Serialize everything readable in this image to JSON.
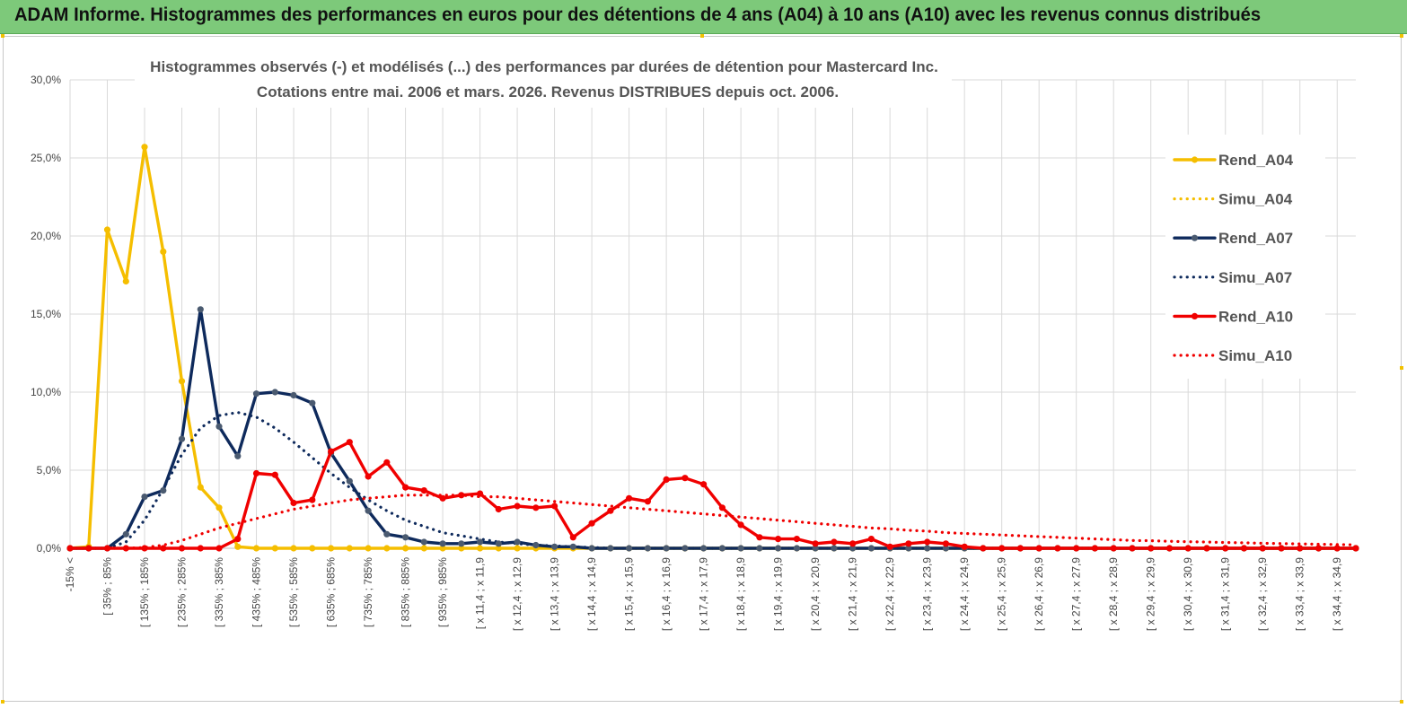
{
  "header": {
    "title": "ADAM Informe. Histogrammes des performances en euros pour des détentions de 4 ans (A04) à 10 ans (A10) avec les revenus connus distribués"
  },
  "colors": {
    "banner": "#7dc97a",
    "A04": "#f5be00",
    "A07": "#0e2a5c",
    "A10": "#f00000",
    "marker_A07": "#4a5a70",
    "grid": "#d9d9d9"
  },
  "chart_data": {
    "type": "line",
    "title": [
      "Histogrammes observés (-) et modélisés (...) des performances par durées de détention pour Mastercard Inc.",
      "Cotations entre mai. 2006 et mars. 2026. Revenus DISTRIBUES depuis oct. 2006."
    ],
    "xlabel": "",
    "ylabel": "",
    "ylim": [
      0,
      30
    ],
    "y_ticks": [
      "0,0%",
      "5,0%",
      "10,0%",
      "15,0%",
      "20,0%",
      "25,0%",
      "30,0%"
    ],
    "grid": "vertical and horizontal",
    "legend_position": "right",
    "x_labels": [
      "-15% <",
      "[ 35% ; 85%",
      "[ 135% ; 185%",
      "[ 235% ; 285%",
      "[ 335% ; 385%",
      "[ 435% ; 485%",
      "[ 535% ; 585%",
      "[ 635% ; 685%",
      "[ 735% ; 785%",
      "[ 835% ; 885%",
      "[ 935% ; 985%",
      "[ x 11,4 ; x 11,9",
      "[ x 12,4 ; x 12,9",
      "[ x 13,4 ; x 13,9",
      "[ x 14,4 ; x 14,9",
      "[ x 15,4 ; x 15,9",
      "[ x 16,4 ; x 16,9",
      "[ x 17,4 ; x 17,9",
      "[ x 18,4 ; x 18,9",
      "[ x 19,4 ; x 19,9",
      "[ x 20,4 ; x 20,9",
      "[ x 21,4 ; x 21,9",
      "[ x 22,4 ; x 22,9",
      "[ x 23,4 ; x 23,9",
      "[ x 24,4 ; x 24,9",
      "[ x 25,4 ; x 25,9",
      "[ x 26,4 ; x 26,9",
      "[ x 27,4 ; x 27,9",
      "[ x 28,4 ; x 28,9",
      "[ x 29,4 ; x 29,9",
      "[ x 30,4 ; x 30,9",
      "[ x 31,4 ; x 31,9",
      "[ x 32,4 ; x 32,9",
      "[ x 33,4 ; x 33,9",
      "[ x 34,4 ; x 34,9"
    ],
    "series": [
      {
        "name": "Rend_A04",
        "color": "#f5be00",
        "style": "solid",
        "markers": true,
        "values": [
          0,
          0.1,
          20.4,
          17.1,
          25.7,
          19.0,
          10.7,
          3.9,
          2.6,
          0.1,
          0,
          0,
          0,
          0,
          0,
          0,
          0,
          0,
          0,
          0,
          0,
          0,
          0,
          0,
          0,
          0,
          0,
          0,
          0,
          0,
          0,
          0,
          0,
          0,
          0,
          0,
          0,
          0,
          0,
          0,
          0,
          0,
          0,
          0,
          0,
          0,
          0,
          0,
          0,
          0,
          0,
          0,
          0,
          0,
          0,
          0,
          0,
          0,
          0,
          0,
          0,
          0,
          0,
          0,
          0,
          0,
          0,
          0,
          0,
          0
        ]
      },
      {
        "name": "Simu_A04",
        "color": "#f5be00",
        "style": "dotted",
        "markers": false,
        "values": []
      },
      {
        "name": "Rend_A07",
        "color": "#0e2a5c",
        "style": "solid",
        "markers": true,
        "values": [
          0,
          0,
          0,
          0.9,
          3.3,
          3.7,
          7.0,
          15.3,
          7.8,
          5.9,
          9.9,
          10.0,
          9.8,
          9.3,
          6.1,
          4.3,
          2.4,
          0.9,
          0.7,
          0.4,
          0.3,
          0.3,
          0.4,
          0.3,
          0.4,
          0.2,
          0.1,
          0.1,
          0,
          0,
          0,
          0,
          0,
          0,
          0,
          0,
          0,
          0,
          0,
          0,
          0,
          0,
          0,
          0,
          0,
          0,
          0,
          0,
          0,
          0,
          0,
          0,
          0,
          0,
          0,
          0,
          0,
          0,
          0,
          0,
          0,
          0,
          0,
          0,
          0,
          0,
          0,
          0,
          0,
          0
        ]
      },
      {
        "name": "Simu_A07",
        "color": "#0e2a5c",
        "style": "dotted",
        "markers": false,
        "values": [
          0,
          0,
          0,
          0.4,
          1.8,
          3.8,
          6.0,
          7.7,
          8.5,
          8.7,
          8.4,
          7.7,
          6.8,
          5.8,
          4.8,
          3.9,
          3.1,
          2.4,
          1.8,
          1.4,
          1.0,
          0.8,
          0.6,
          0.4,
          0.3,
          0.2,
          0.15,
          0.1,
          0.05,
          0,
          0,
          0,
          0,
          0,
          0,
          0,
          0,
          0,
          0,
          0,
          0,
          0,
          0,
          0,
          0,
          0,
          0,
          0,
          0,
          0,
          0,
          0,
          0,
          0,
          0,
          0,
          0,
          0,
          0,
          0,
          0,
          0,
          0,
          0,
          0,
          0,
          0,
          0,
          0,
          0
        ]
      },
      {
        "name": "Rend_A10",
        "color": "#f00000",
        "style": "solid",
        "markers": true,
        "values": [
          0,
          0,
          0,
          0,
          0,
          0,
          0,
          0,
          0,
          0.6,
          4.8,
          4.7,
          2.9,
          3.1,
          6.2,
          6.8,
          4.6,
          5.5,
          3.9,
          3.7,
          3.2,
          3.4,
          3.5,
          2.5,
          2.7,
          2.6,
          2.7,
          0.7,
          1.6,
          2.4,
          3.2,
          3.0,
          4.4,
          4.5,
          4.1,
          2.6,
          1.5,
          0.7,
          0.6,
          0.6,
          0.3,
          0.4,
          0.3,
          0.6,
          0.1,
          0.3,
          0.4,
          0.3,
          0.1,
          0,
          0,
          0,
          0,
          0,
          0,
          0,
          0,
          0,
          0,
          0,
          0,
          0,
          0,
          0,
          0,
          0,
          0,
          0,
          0,
          0
        ]
      },
      {
        "name": "Simu_A10",
        "color": "#f00000",
        "style": "dotted",
        "markers": false,
        "values": [
          0,
          0,
          0,
          0,
          0.05,
          0.2,
          0.5,
          0.9,
          1.3,
          1.6,
          1.9,
          2.2,
          2.5,
          2.7,
          2.9,
          3.1,
          3.2,
          3.3,
          3.4,
          3.4,
          3.4,
          3.4,
          3.3,
          3.3,
          3.2,
          3.1,
          3.0,
          2.9,
          2.8,
          2.7,
          2.6,
          2.5,
          2.4,
          2.3,
          2.2,
          2.1,
          2.0,
          1.9,
          1.8,
          1.7,
          1.6,
          1.5,
          1.4,
          1.3,
          1.25,
          1.15,
          1.1,
          1.0,
          0.95,
          0.9,
          0.85,
          0.8,
          0.75,
          0.7,
          0.65,
          0.6,
          0.55,
          0.5,
          0.48,
          0.45,
          0.42,
          0.4,
          0.37,
          0.35,
          0.32,
          0.3,
          0.28,
          0.26,
          0.24,
          0.22
        ]
      }
    ]
  }
}
